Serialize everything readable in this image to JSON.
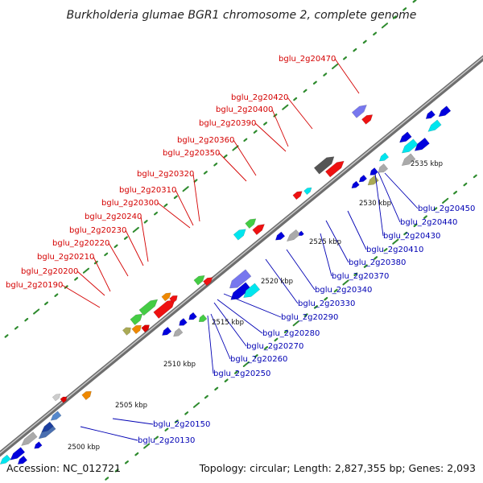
{
  "title": "Burkholderia glumae BGR1 chromosome 2, complete genome",
  "accession": "Accession: NC_012721",
  "summary": "Topology: circular; Length: 2,827,355 bp; Genes: 2,093",
  "colors": {
    "forward_label": "#d40000",
    "reverse_label": "#0000b4",
    "backbone": "#888888",
    "tick": "#2e8b2e"
  },
  "scale_ticks": [
    "2500 kbp",
    "2505 kbp",
    "2510 kbp",
    "2515 kbp",
    "2520 kbp",
    "2525 kbp",
    "2530 kbp",
    "2535 kbp"
  ],
  "forward_labels": [
    "bglu_2g20470",
    "bglu_2g20420",
    "bglu_2g20400",
    "bglu_2g20390",
    "bglu_2g20360",
    "bglu_2g20350",
    "bglu_2g20320",
    "bglu_2g20310",
    "bglu_2g20300",
    "bglu_2g20240",
    "bglu_2g20230",
    "bglu_2g20220",
    "bglu_2g20210",
    "bglu_2g20200",
    "bglu_2g20190"
  ],
  "reverse_labels": [
    "bglu_2g20450",
    "bglu_2g20440",
    "bglu_2g20430",
    "bglu_2g20410",
    "bglu_2g20380",
    "bglu_2g20370",
    "bglu_2g20340",
    "bglu_2g20330",
    "bglu_2g20290",
    "bglu_2g20280",
    "bglu_2g20270",
    "bglu_2g20260",
    "bglu_2g20250",
    "bglu_2g20150",
    "bglu_2g20130"
  ]
}
